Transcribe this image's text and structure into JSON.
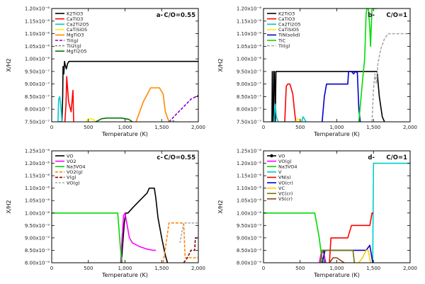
{
  "chart_data": [
    {
      "type": "line",
      "panel_label": "a-",
      "title": "C/O=0.55",
      "xlabel": "Temperature (K)",
      "ylabel": "X/H2",
      "xlim": [
        0,
        2000
      ],
      "ylim": [
        7.5e-07,
        1.2e-06
      ],
      "xticks": [
        0,
        500,
        1000,
        1500,
        2000
      ],
      "xtick_labels": [
        "0",
        "500",
        "1,000",
        "1,500",
        "2,000"
      ],
      "yticks": [
        7.5e-07,
        8e-07,
        8.5e-07,
        9e-07,
        9.5e-07,
        1e-06,
        1.05e-06,
        1.1e-06,
        1.15e-06,
        1.2e-06
      ],
      "ytick_labels": [
        "7.50x10⁻⁷",
        "8.00x10⁻⁷",
        "8.50x10⁻⁷",
        "9.00x10⁻⁷",
        "9.50x10⁻⁷",
        "1.00x10⁻⁶",
        "1.05x10⁻⁶",
        "1.10x10⁻⁶",
        "1.15x10⁻⁶",
        "1.20x10⁻⁶"
      ],
      "legend_position": "top-left",
      "series": [
        {
          "name": "K2TiO3",
          "color": "#000000",
          "dash": "",
          "x": [
            100,
            140,
            150,
            155,
            165,
            175,
            185,
            200,
            215,
            235,
            260,
            300,
            2000
          ],
          "y": [
            7.5e-07,
            7.5e-07,
            8.5e-07,
            9.7e-07,
            9.4e-07,
            9.9e-07,
            9.75e-07,
            9.6e-07,
            9.8e-07,
            9.9e-07,
            9.9e-07,
            9.9e-07,
            9.9e-07
          ]
        },
        {
          "name": "CaTiO3",
          "color": "#ff0000",
          "dash": "",
          "x": [
            180,
            195,
            205,
            230,
            265,
            290,
            300
          ],
          "y": [
            7.5e-07,
            8.2e-07,
            9.3e-07,
            8.3e-07,
            7.9e-07,
            8.75e-07,
            7.5e-07
          ]
        },
        {
          "name": "Ca2Ti2O5",
          "color": "#00cccc",
          "dash": "",
          "x": [
            85,
            95,
            110,
            130,
            140
          ],
          "y": [
            7.5e-07,
            8.4e-07,
            8.5e-07,
            7.9e-07,
            7.5e-07
          ]
        },
        {
          "name": "CaTiSiO5",
          "color": "#ffee00",
          "dash": "",
          "x": [
            470,
            500,
            530,
            570,
            590
          ],
          "y": [
            7.5e-07,
            7.62e-07,
            7.62e-07,
            7.6e-07,
            7.5e-07
          ]
        },
        {
          "name": "MgTiO3",
          "color": "#ff8800",
          "dash": "",
          "x": [
            1150,
            1250,
            1350,
            1420,
            1470,
            1520,
            1550,
            1600
          ],
          "y": [
            7.5e-07,
            8.3e-07,
            8.85e-07,
            8.85e-07,
            8.85e-07,
            8.6e-07,
            7.9e-07,
            7.5e-07
          ]
        },
        {
          "name": "TiI(g)",
          "color": "#8800cc",
          "dash": "4,2",
          "x": [
            1600,
            1700,
            1800,
            1900,
            2000
          ],
          "y": [
            7.5e-07,
            7.8e-07,
            8.1e-07,
            8.4e-07,
            8.55e-07
          ]
        },
        {
          "name": "TiI2(g)",
          "color": "#888888",
          "dash": "3,2",
          "x": [
            1600,
            1650,
            1700
          ],
          "y": [
            7.5e-07,
            7.55e-07,
            7.5e-07
          ]
        },
        {
          "name": "MgTi2O5",
          "color": "#007700",
          "dash": "",
          "x": [
            600,
            680,
            750,
            850,
            950,
            1050,
            1100
          ],
          "y": [
            7.5e-07,
            7.62e-07,
            7.65e-07,
            7.65e-07,
            7.65e-07,
            7.6e-07,
            7.5e-07
          ]
        }
      ]
    },
    {
      "type": "line",
      "panel_label": "b-",
      "title": "C/O=1",
      "xlabel": "Temperature (K)",
      "ylabel": "X/H2",
      "xlim": [
        0,
        2000
      ],
      "ylim": [
        7.5e-07,
        1.2e-06
      ],
      "xticks": [
        0,
        500,
        1000,
        1500,
        2000
      ],
      "xtick_labels": [
        "0",
        "500",
        "1,000",
        "1,500",
        "2,000"
      ],
      "yticks": [
        7.5e-07,
        8e-07,
        8.5e-07,
        9e-07,
        9.5e-07,
        1e-06,
        1.05e-06,
        1.1e-06,
        1.15e-06,
        1.2e-06
      ],
      "ytick_labels": [
        "7.50x10⁻⁷",
        "8.00x10⁻⁷",
        "8.50x10⁻⁷",
        "9.00x10⁻⁷",
        "9.50x10⁻⁷",
        "1.00x10⁻⁶",
        "1.05x10⁻⁶",
        "1.10x10⁻⁶",
        "1.15x10⁻⁶",
        "1.20x10⁻⁶"
      ],
      "legend_position": "top-left",
      "series": [
        {
          "name": "K2TiO3",
          "color": "#000000",
          "dash": "",
          "x": [
            100,
            115,
            120,
            125,
            135,
            140,
            150,
            160,
            170,
            1300,
            1550,
            1580,
            1620,
            1650
          ],
          "y": [
            7.5e-07,
            7.5e-07,
            9.5e-07,
            7.5e-07,
            7.5e-07,
            9.5e-07,
            9.5e-07,
            7.5e-07,
            9.5e-07,
            9.5e-07,
            9.5e-07,
            8.5e-07,
            7.7e-07,
            7.5e-07
          ]
        },
        {
          "name": "CaTiO3",
          "color": "#ff0000",
          "dash": "",
          "x": [
            290,
            310,
            330,
            360,
            400,
            420,
            440
          ],
          "y": [
            7.5e-07,
            8.9e-07,
            9e-07,
            9e-07,
            8.6e-07,
            8e-07,
            7.5e-07
          ]
        },
        {
          "name": "Ca2Ti2O5",
          "color": "#00cccc",
          "dash": "",
          "x": [
            140,
            160,
            175,
            200,
            520,
            540,
            560,
            580
          ],
          "y": [
            7.5e-07,
            8.2e-07,
            7.7e-07,
            7.5e-07,
            7.5e-07,
            7.7e-07,
            7.6e-07,
            7.5e-07
          ]
        },
        {
          "name": "CaTiSiO5",
          "color": "#ffee00",
          "dash": "",
          "x": [
            440,
            470,
            500,
            520
          ],
          "y": [
            7.5e-07,
            7.62e-07,
            7.6e-07,
            7.5e-07
          ]
        },
        {
          "name": "TiN(solid)",
          "color": "#0000cc",
          "dash": "",
          "x": [
            800,
            830,
            860,
            1000,
            1150,
            1160,
            1200,
            1230,
            1250,
            1280,
            1300,
            1320
          ],
          "y": [
            7.5e-07,
            8.5e-07,
            9e-07,
            9e-07,
            9e-07,
            9.5e-07,
            9.5e-07,
            9.4e-07,
            9.5e-07,
            9.45e-07,
            8e-07,
            7.5e-07
          ]
        },
        {
          "name": "TiC",
          "color": "#00dd00",
          "dash": "",
          "x": [
            1300,
            1340,
            1380,
            1400,
            1410,
            1430,
            1450,
            1460,
            1480,
            1500,
            1550
          ],
          "y": [
            7.5e-07,
            8.8e-07,
            1e-06,
            1.18e-06,
            1.2e-06,
            1.2e-06,
            1.12e-06,
            1.05e-06,
            1.2e-06,
            1.2e-06,
            1.2e-06
          ]
        },
        {
          "name": "TiI(g)",
          "color": "#aaaaaa",
          "dash": "4,2",
          "x": [
            1480,
            1500,
            1520,
            1540,
            1560,
            1600,
            1650,
            1700,
            1800,
            2000
          ],
          "y": [
            7.5e-07,
            8.8e-07,
            9.4e-07,
            9e-07,
            9.8e-07,
            1.04e-06,
            1.08e-06,
            1.1e-06,
            1.1e-06,
            1.1e-06
          ]
        }
      ]
    },
    {
      "type": "line",
      "panel_label": "c-",
      "title": "C/O=0.55",
      "xlabel": "Temperature (K)",
      "ylabel": "X/H2",
      "xlim": [
        0,
        2000
      ],
      "ylim": [
        8e-09,
        1.25e-08
      ],
      "xticks": [
        0,
        500,
        1000,
        1500,
        2000
      ],
      "xtick_labels": [
        "0",
        "500",
        "1,000",
        "1,500",
        "2,000"
      ],
      "yticks": [
        8e-09,
        8.5e-09,
        9e-09,
        9.5e-09,
        1e-08,
        1.05e-08,
        1.1e-08,
        1.15e-08,
        1.2e-08,
        1.25e-08
      ],
      "ytick_labels": [
        "8.00x10⁻⁹",
        "8.50x10⁻⁹",
        "9.00x10⁻⁹",
        "9.50x10⁻⁹",
        "1.00x10⁻⁸",
        "1.05x10⁻⁸",
        "1.10x10⁻⁸",
        "1.15x10⁻⁸",
        "1.20x10⁻⁸",
        "1.25x10⁻⁸"
      ],
      "legend_position": "top-left",
      "series": [
        {
          "name": "VO",
          "color": "#000000",
          "dash": "",
          "x": [
            950,
            990,
            1010,
            1040,
            1100,
            1200,
            1300,
            1330,
            1350,
            1400,
            1420,
            1450,
            1500,
            1550,
            1580
          ],
          "y": [
            8e-09,
            9.6e-09,
            1e-08,
            1e-08,
            1.02e-08,
            1.05e-08,
            1.08e-08,
            1.1e-08,
            1.1e-08,
            1.1e-08,
            1.06e-08,
            9.8e-09,
            9e-09,
            8.3e-09,
            8e-09
          ]
        },
        {
          "name": "VO2",
          "color": "#ff00ff",
          "dash": "",
          "x": [
            940,
            960,
            980,
            1000,
            1030,
            1060,
            1100,
            1200,
            1300,
            1380,
            1420
          ],
          "y": [
            8e-09,
            9e-09,
            9.9e-09,
            1e-08,
            9.5e-09,
            9e-09,
            8.8e-09,
            8.65e-09,
            8.55e-09,
            8.5e-09,
            8.5e-09
          ]
        },
        {
          "name": "Na3VO4",
          "color": "#00dd00",
          "dash": "",
          "x": [
            0,
            700,
            860,
            900,
            940,
            960
          ],
          "y": [
            1e-08,
            1e-08,
            1e-08,
            1e-08,
            8.5e-09,
            8e-09
          ]
        },
        {
          "name": "VO2(g)",
          "color": "#ff8800",
          "dash": "4,2",
          "x": [
            1520,
            1560,
            1600,
            1700,
            1750,
            1800,
            1820,
            1850,
            1860,
            1900,
            1950,
            2000
          ],
          "y": [
            8e-09,
            8.8e-09,
            9.6e-09,
            9.6e-09,
            9.6e-09,
            9.6e-09,
            8.2e-09,
            8.2e-09,
            8.2e-09,
            8.2e-09,
            8.2e-09,
            8.2e-09
          ]
        },
        {
          "name": "V(g)",
          "color": "#880000",
          "dash": "4,2",
          "x": [
            1800,
            1850,
            1900,
            1950,
            1960,
            2000
          ],
          "y": [
            8e-09,
            8.2e-09,
            8.5e-09,
            8.5e-09,
            9e-09,
            9e-09
          ]
        },
        {
          "name": "VO(g)",
          "color": "#aaaaaa",
          "dash": "3,2",
          "x": [
            1750,
            1800,
            1850,
            1900,
            1950,
            2000
          ],
          "y": [
            8.8e-09,
            9.6e-09,
            9.6e-09,
            9.6e-09,
            9.6e-09,
            9.6e-09
          ]
        }
      ]
    },
    {
      "type": "line",
      "panel_label": "d-",
      "title": "C/O=1",
      "xlabel": "Temperature (K)",
      "ylabel": "X/H2",
      "xlim": [
        0,
        2000
      ],
      "ylim": [
        8e-09,
        1.25e-08
      ],
      "xticks": [
        0,
        500,
        1000,
        1500,
        2000
      ],
      "xtick_labels": [
        "0",
        "500",
        "1,000",
        "1,500",
        "2,000"
      ],
      "yticks": [
        8e-09,
        8.5e-09,
        9e-09,
        9.5e-09,
        1e-08,
        1.05e-08,
        1.1e-08,
        1.15e-08,
        1.2e-08,
        1.25e-08
      ],
      "ytick_labels": [
        "8.00x10⁻⁹",
        "8.50x10⁻⁹",
        "9.00x10⁻⁹",
        "9.50x10⁻⁹",
        "1.00x10⁻⁸",
        "1.05x10⁻⁸",
        "1.10x10⁻⁸",
        "1.15x10⁻⁸",
        "1.20x10⁻⁸",
        "1.25x10⁻⁸"
      ],
      "legend_position": "top-left",
      "series": [
        {
          "name": "VO",
          "color": "#000000",
          "dash": "",
          "x": [
            780,
            800,
            820,
            840
          ],
          "y": [
            8e-09,
            8.5e-09,
            8.5e-09,
            8e-09
          ]
        },
        {
          "name": "VO(g)",
          "color": "#ff00ff",
          "dash": "",
          "x": [
            760,
            790,
            820,
            850
          ],
          "y": [
            8e-09,
            8.45e-09,
            8.4e-09,
            8e-09
          ]
        },
        {
          "name": "Na3VO4",
          "color": "#00dd00",
          "dash": "",
          "x": [
            0,
            600,
            700,
            760,
            790,
            820
          ],
          "y": [
            1e-08,
            1e-08,
            1e-08,
            9e-09,
            8.3e-09,
            8e-09
          ]
        },
        {
          "name": "V",
          "color": "#00cccc",
          "dash": "",
          "x": [
            1490,
            1500,
            1510,
            1520,
            1600,
            2000
          ],
          "y": [
            8e-09,
            1.2e-08,
            1.2e-08,
            1.2e-08,
            1.2e-08,
            1.2e-08
          ]
        },
        {
          "name": "VN(s)",
          "color": "#ff0000",
          "dash": "",
          "x": [
            900,
            920,
            1000,
            1100,
            1150,
            1200,
            1250,
            1300,
            1350,
            1400,
            1450,
            1480,
            1500
          ],
          "y": [
            8e-09,
            9e-09,
            9e-09,
            9e-09,
            9e-09,
            9.5e-09,
            9.5e-09,
            9.5e-09,
            9.5e-09,
            9.5e-09,
            9.5e-09,
            1e-08,
            1e-08
          ]
        },
        {
          "name": "VO(cr)",
          "color": "#0000cc",
          "dash": "",
          "x": [
            800,
            840,
            860,
            900,
            1000,
            1100,
            1200,
            1300,
            1400,
            1450,
            1490
          ],
          "y": [
            8e-09,
            8.5e-09,
            8.5e-09,
            8.5e-09,
            8.5e-09,
            8.5e-09,
            8.5e-09,
            8.5e-09,
            8.5e-09,
            8.7e-09,
            8e-09
          ]
        },
        {
          "name": "VC",
          "color": "#ffcc00",
          "dash": "",
          "x": [
            1300,
            1350,
            1400,
            1430,
            1460
          ],
          "y": [
            8e-09,
            8.2e-09,
            8.5e-09,
            8.5e-09,
            8e-09
          ]
        },
        {
          "name": "VC(cr)",
          "color": "#777700",
          "dash": "",
          "x": [
            780,
            800,
            900,
            1000,
            1100,
            1200,
            1220,
            1240
          ],
          "y": [
            8e-09,
            8.5e-09,
            8.5e-09,
            8.5e-09,
            8.5e-09,
            8.5e-09,
            8.5e-09,
            8e-09
          ]
        },
        {
          "name": "VS(cr)",
          "color": "#8B4513",
          "dash": "",
          "x": [
            900,
            950,
            1000,
            1050,
            1100
          ],
          "y": [
            8e-09,
            8.2e-09,
            8.2e-09,
            8.1e-09,
            8e-09
          ]
        }
      ]
    }
  ]
}
